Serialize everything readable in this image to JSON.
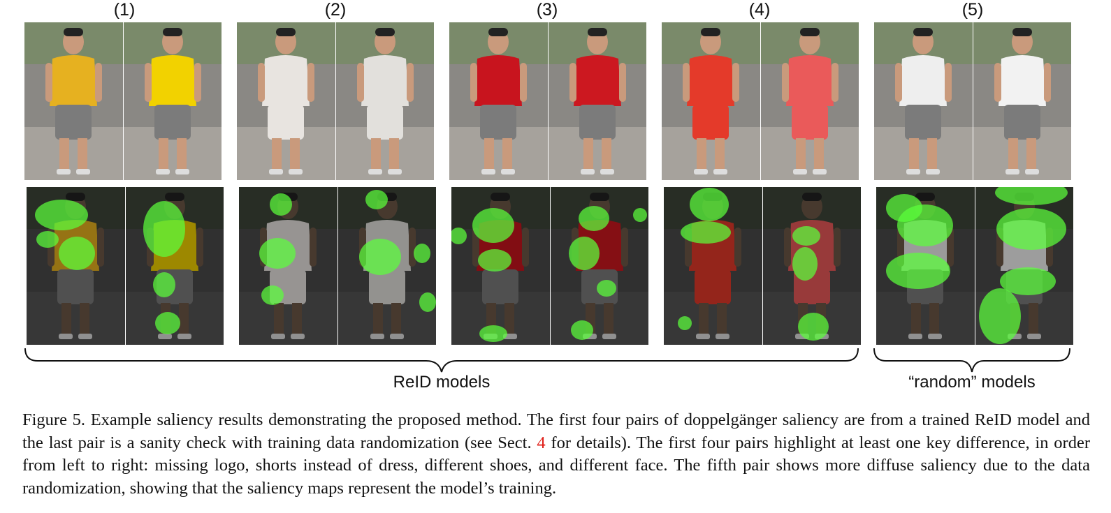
{
  "figure": {
    "column_labels": [
      "(1)",
      "(2)",
      "(3)",
      "(4)",
      "(5)"
    ],
    "group_labels": {
      "reid": "ReID models",
      "random": "“random” models"
    },
    "caption": {
      "part1": "Figure 5. Example saliency results demonstrating the proposed method. The first four pairs of doppelgänger saliency are from a trained ReID model and the last pair is a sanity check with training data randomization (see Sect. ",
      "ref": "4",
      "part2": " for details). The first four pairs highlight at least one key difference, in order from left to right: missing logo, shorts instead of dress, different shoes, and different face. The fifth pair shows more diffuse saliency due to the data randomization, showing that the saliency maps represent the model’s training."
    }
  },
  "pairs": [
    {
      "top": [
        "#e6b120",
        "#f2d200"
      ],
      "bottom": [
        "#8a8a8a",
        "#d9cfa2"
      ]
    },
    {
      "top": [
        "#e8e4e0",
        "#e2e0dc"
      ],
      "bottom": [
        "#efe9e4",
        "#ece8e2"
      ]
    },
    {
      "top": [
        "#c8141e",
        "#cc1820"
      ],
      "bottom": [
        "#151515",
        "#5a5a5a"
      ]
    },
    {
      "top": [
        "#e43a2a",
        "#ea5a5a"
      ],
      "bottom": [
        "#e43a2a",
        "#ea5a5a"
      ]
    },
    {
      "top": [
        "#eeeeee",
        "#f2f2f2"
      ],
      "bottom": [
        "#6b6a4c",
        "#a78f5e"
      ]
    }
  ],
  "colors": {
    "saliency": "#5cff3c",
    "reference": "#e0201a"
  }
}
